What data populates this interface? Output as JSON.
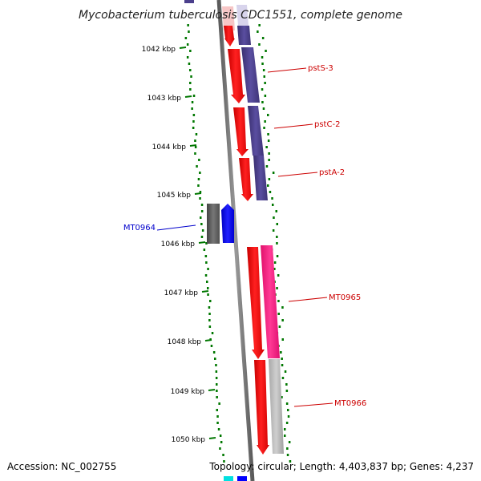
{
  "title": "Mycobacterium tuberculosis CDC1551, complete genome",
  "footer": {
    "accession": "Accession: NC_002755",
    "summary": "Topology: circular; Length: 4,403,837 bp; Genes: 4,237"
  },
  "scale": {
    "unit": "kbp",
    "ticks": [
      "1042 kbp",
      "1043 kbp",
      "1044 kbp",
      "1045 kbp",
      "1046 kbp",
      "1047 kbp",
      "1048 kbp",
      "1049 kbp",
      "1050 kbp"
    ]
  },
  "genes": [
    {
      "name": "pstS-3",
      "label_color": "#cc0000",
      "strand_color": "#ff0000",
      "annotation_color": "#4b3f8c"
    },
    {
      "name": "pstC-2",
      "label_color": "#cc0000",
      "strand_color": "#ff0000",
      "annotation_color": "#4b3f8c"
    },
    {
      "name": "pstA-2",
      "label_color": "#cc0000",
      "strand_color": "#ff0000",
      "annotation_color": "#4b3f8c"
    },
    {
      "name": "MT0964",
      "label_color": "#0000cc",
      "strand_color": "#0000ff",
      "annotation_color": "#555555"
    },
    {
      "name": "MT0965",
      "label_color": "#cc0000",
      "strand_color": "#ff0000",
      "annotation_color": "#ff2a8a"
    },
    {
      "name": "MT0966",
      "label_color": "#cc0000",
      "strand_color": "#ff0000",
      "annotation_color": "#b8b8b8"
    }
  ],
  "colors": {
    "backbone": "#7a7a7a",
    "tick_mark": "#007700",
    "gc_dots": "#007700",
    "label_line": "#cc0000"
  }
}
